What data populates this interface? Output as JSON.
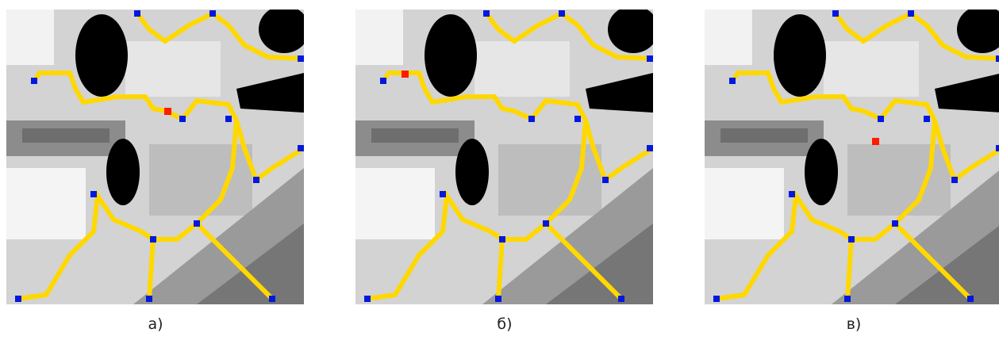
{
  "figure": {
    "captions": [
      "а)",
      "б)",
      "в)"
    ]
  }
}
